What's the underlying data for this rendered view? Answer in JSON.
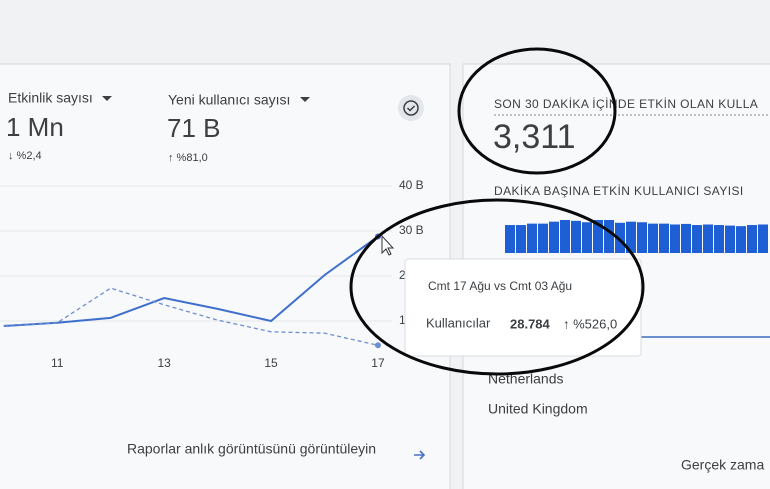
{
  "metrics": [
    {
      "label": "Etkinlik sayısı",
      "value": "1 Mn",
      "change": "↓ %2,4"
    },
    {
      "label": "Yeni kullanıcı sayısı",
      "value": "71 B",
      "change": "↑ %81,0"
    }
  ],
  "realtime": {
    "title": "SON 30 DAKİKA İÇİNDE ETKİN OLAN KULLA",
    "value": "3,311",
    "subtitle": "DAKİKA BAŞINA ETKİN KULLANICI SAYISI",
    "countries": [
      "Netherlands",
      "United Kingdom"
    ],
    "link": "Gerçek zama"
  },
  "report_link": "Raporlar anlık görüntüsünü görüntüleyin",
  "tooltip": {
    "title": "Cmt 17 Ağu vs Cmt 03 Ağu",
    "metric": "Kullanıcılar",
    "value": "28.784",
    "change": "↑ %526,0"
  },
  "chart_data": [
    {
      "type": "line",
      "x": [
        10,
        11,
        12,
        13,
        14,
        15,
        16,
        17
      ],
      "xlim": [
        9.93,
        18.16
      ],
      "xticks": [
        11,
        13,
        15,
        17
      ],
      "ylim": [
        0,
        42
      ],
      "yticks": [
        {
          "value": 40,
          "label": "40 B"
        },
        {
          "value": 30,
          "label": "30 B"
        },
        {
          "value": 20,
          "label": "20 B"
        },
        {
          "value": 10,
          "label": "10 B"
        }
      ],
      "grid": true,
      "series": [
        {
          "color": "#3f6fcc",
          "line_style": "solid",
          "values": [
            8.9,
            9.6,
            10.7,
            15.1,
            12.7,
            10.0,
            20.2,
            28.784
          ]
        },
        {
          "color": "#6d8fcf",
          "line_style": "dashed",
          "values": [
            9.0,
            9.6,
            17.3,
            13.6,
            10.2,
            7.6,
            7.3,
            4.6
          ]
        }
      ]
    },
    {
      "type": "bar",
      "color": "#1f5fd6",
      "values": [
        100,
        100,
        105,
        105,
        112,
        118,
        115,
        110,
        118,
        118,
        108,
        112,
        110,
        105,
        105,
        102,
        104,
        100,
        102,
        100,
        98,
        96,
        100,
        102
      ]
    }
  ]
}
